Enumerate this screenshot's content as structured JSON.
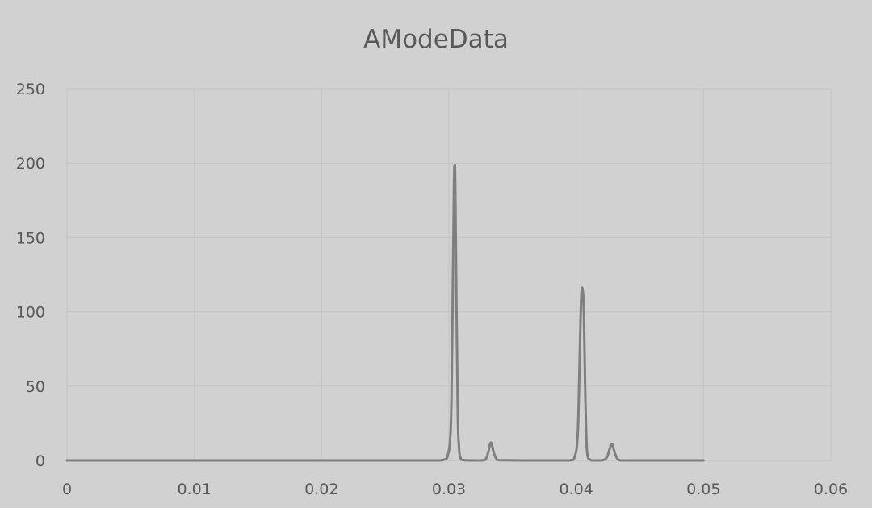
{
  "chart_data": {
    "type": "scatter",
    "style": "smooth-line",
    "title": "AModeData",
    "xlabel": "",
    "ylabel": "",
    "xlim": [
      0,
      0.06
    ],
    "ylim": [
      0,
      250
    ],
    "x_ticks": [
      0,
      0.01,
      0.02,
      0.03,
      0.04,
      0.05,
      0.06
    ],
    "x_tick_labels": [
      "0",
      "0.01",
      "0.02",
      "0.03",
      "0.04",
      "0.05",
      "0.06"
    ],
    "y_ticks": [
      0,
      50,
      100,
      150,
      200,
      250
    ],
    "y_tick_labels": [
      "0",
      "50",
      "100",
      "150",
      "200",
      "250"
    ],
    "grid": true,
    "legend": "none",
    "colors": {
      "background": "#d1d1d1",
      "series": "#7f7f7f",
      "grid": "#c4c4c4",
      "text": "#595959"
    },
    "series": [
      {
        "points": [
          [
            0,
            0
          ],
          [
            0.01,
            0
          ],
          [
            0.02,
            0
          ],
          [
            0.029,
            0
          ],
          [
            0.0296,
            0.5
          ],
          [
            0.0299,
            3
          ],
          [
            0.0301,
            15
          ],
          [
            0.0302,
            40
          ],
          [
            0.0303,
            110
          ],
          [
            0.0304,
            185
          ],
          [
            0.03045,
            197
          ],
          [
            0.0305,
            185
          ],
          [
            0.0306,
            100
          ],
          [
            0.0307,
            30
          ],
          [
            0.0308,
            8
          ],
          [
            0.0309,
            2
          ],
          [
            0.0311,
            0.3
          ],
          [
            0.0325,
            0
          ],
          [
            0.0329,
            1
          ],
          [
            0.0331,
            6
          ],
          [
            0.0333,
            12
          ],
          [
            0.0335,
            6
          ],
          [
            0.0337,
            1.5
          ],
          [
            0.0339,
            0.2
          ],
          [
            0.0395,
            0
          ],
          [
            0.0399,
            3
          ],
          [
            0.0401,
            15
          ],
          [
            0.0402,
            40
          ],
          [
            0.0403,
            80
          ],
          [
            0.0404,
            110
          ],
          [
            0.0405,
            115
          ],
          [
            0.0406,
            100
          ],
          [
            0.0407,
            50
          ],
          [
            0.0408,
            15
          ],
          [
            0.0409,
            3
          ],
          [
            0.0411,
            0.5
          ],
          [
            0.0413,
            0
          ],
          [
            0.042,
            0
          ],
          [
            0.0424,
            2
          ],
          [
            0.0426,
            7
          ],
          [
            0.0428,
            11
          ],
          [
            0.043,
            6
          ],
          [
            0.0432,
            1.5
          ],
          [
            0.0434,
            0.2
          ],
          [
            0.0436,
            0
          ],
          [
            0.05,
            0
          ]
        ]
      }
    ]
  }
}
